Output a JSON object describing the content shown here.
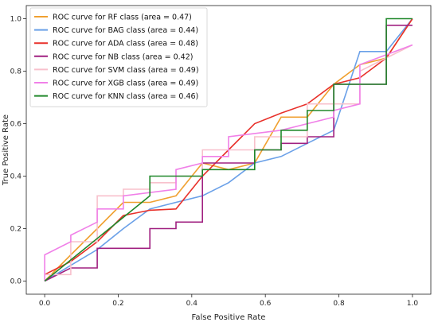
{
  "chart_data": {
    "type": "line",
    "xlabel": "False Positive Rate",
    "ylabel": "True Positive Rate",
    "xlim": [
      -0.05,
      1.05
    ],
    "ylim": [
      -0.05,
      1.05
    ],
    "xticks": [
      "0.0",
      "0.2",
      "0.4",
      "0.6",
      "0.8",
      "1.0"
    ],
    "yticks": [
      "0.0",
      "0.2",
      "0.4",
      "0.6",
      "0.8",
      "1.0"
    ],
    "grid": false,
    "legend_position": "top-left",
    "series": [
      {
        "name": "ROC curve for RF class (area = 0.47)",
        "color": "#f0a030",
        "x": [
          0.0,
          0.071,
          0.143,
          0.214,
          0.286,
          0.357,
          0.429,
          0.5,
          0.571,
          0.643,
          0.714,
          0.786,
          0.857,
          0.929,
          1.0
        ],
        "y": [
          0.0,
          0.1,
          0.2,
          0.3,
          0.3,
          0.325,
          0.45,
          0.425,
          0.45,
          0.625,
          0.625,
          0.75,
          0.825,
          0.85,
          1.0
        ]
      },
      {
        "name": "ROC curve for BAG class (area = 0.44)",
        "color": "#6aa0e8",
        "x": [
          0.0,
          0.071,
          0.143,
          0.214,
          0.286,
          0.357,
          0.429,
          0.5,
          0.571,
          0.643,
          0.714,
          0.786,
          0.857,
          0.929,
          1.0
        ],
        "y": [
          0.0,
          0.06,
          0.12,
          0.2,
          0.275,
          0.3,
          0.325,
          0.375,
          0.45,
          0.475,
          0.525,
          0.575,
          0.875,
          0.875,
          1.0
        ]
      },
      {
        "name": "ROC curve for ADA class (area = 0.48)",
        "color": "#e8302a",
        "x": [
          0.0,
          0.071,
          0.143,
          0.214,
          0.286,
          0.357,
          0.429,
          0.5,
          0.571,
          0.643,
          0.714,
          0.786,
          0.857,
          0.929,
          1.0
        ],
        "y": [
          0.025,
          0.075,
          0.15,
          0.25,
          0.27,
          0.275,
          0.4,
          0.5,
          0.6,
          0.64,
          0.675,
          0.75,
          0.775,
          0.85,
          1.0
        ]
      },
      {
        "name": "ROC curve for NB class (area = 0.42)",
        "color": "#a02080",
        "x": [
          0.0,
          0.071,
          0.071,
          0.143,
          0.143,
          0.286,
          0.286,
          0.357,
          0.357,
          0.429,
          0.429,
          0.571,
          0.571,
          0.643,
          0.643,
          0.714,
          0.714,
          0.786,
          0.786,
          0.929,
          0.929,
          1.0
        ],
        "y": [
          0.0,
          0.05,
          0.05,
          0.05,
          0.125,
          0.125,
          0.2,
          0.2,
          0.225,
          0.225,
          0.45,
          0.45,
          0.5,
          0.5,
          0.525,
          0.525,
          0.55,
          0.55,
          0.75,
          0.75,
          0.975,
          0.975
        ]
      },
      {
        "name": "ROC curve for SVM class (area = 0.49)",
        "color": "#f8c0cc",
        "x": [
          0.0,
          0.071,
          0.071,
          0.143,
          0.143,
          0.214,
          0.214,
          0.286,
          0.286,
          0.357,
          0.357,
          0.429,
          0.429,
          0.571,
          0.571,
          0.714,
          0.714,
          0.857,
          0.857,
          1.0
        ],
        "y": [
          0.025,
          0.025,
          0.15,
          0.15,
          0.325,
          0.325,
          0.35,
          0.35,
          0.375,
          0.375,
          0.4,
          0.4,
          0.5,
          0.5,
          0.55,
          0.55,
          0.675,
          0.675,
          0.8,
          0.9
        ]
      },
      {
        "name": "ROC curve for XGB class (area = 0.49)",
        "color": "#f080e8",
        "x": [
          0.0,
          0.0,
          0.071,
          0.071,
          0.143,
          0.143,
          0.214,
          0.214,
          0.357,
          0.357,
          0.429,
          0.429,
          0.5,
          0.5,
          0.643,
          0.643,
          0.786,
          0.786,
          0.857,
          0.857,
          1.0
        ],
        "y": [
          0.0,
          0.1,
          0.15,
          0.175,
          0.225,
          0.275,
          0.275,
          0.325,
          0.35,
          0.425,
          0.45,
          0.475,
          0.475,
          0.55,
          0.575,
          0.575,
          0.625,
          0.65,
          0.675,
          0.825,
          0.9
        ]
      },
      {
        "name": "ROC curve for KNN class (area = 0.46)",
        "color": "#20882a",
        "x": [
          0.0,
          0.286,
          0.286,
          0.429,
          0.429,
          0.571,
          0.571,
          0.643,
          0.643,
          0.714,
          0.714,
          0.786,
          0.786,
          0.929,
          0.929,
          1.0
        ],
        "y": [
          0.0,
          0.325,
          0.4,
          0.4,
          0.425,
          0.425,
          0.5,
          0.5,
          0.575,
          0.575,
          0.65,
          0.65,
          0.75,
          0.75,
          1.0,
          1.0
        ]
      }
    ]
  }
}
